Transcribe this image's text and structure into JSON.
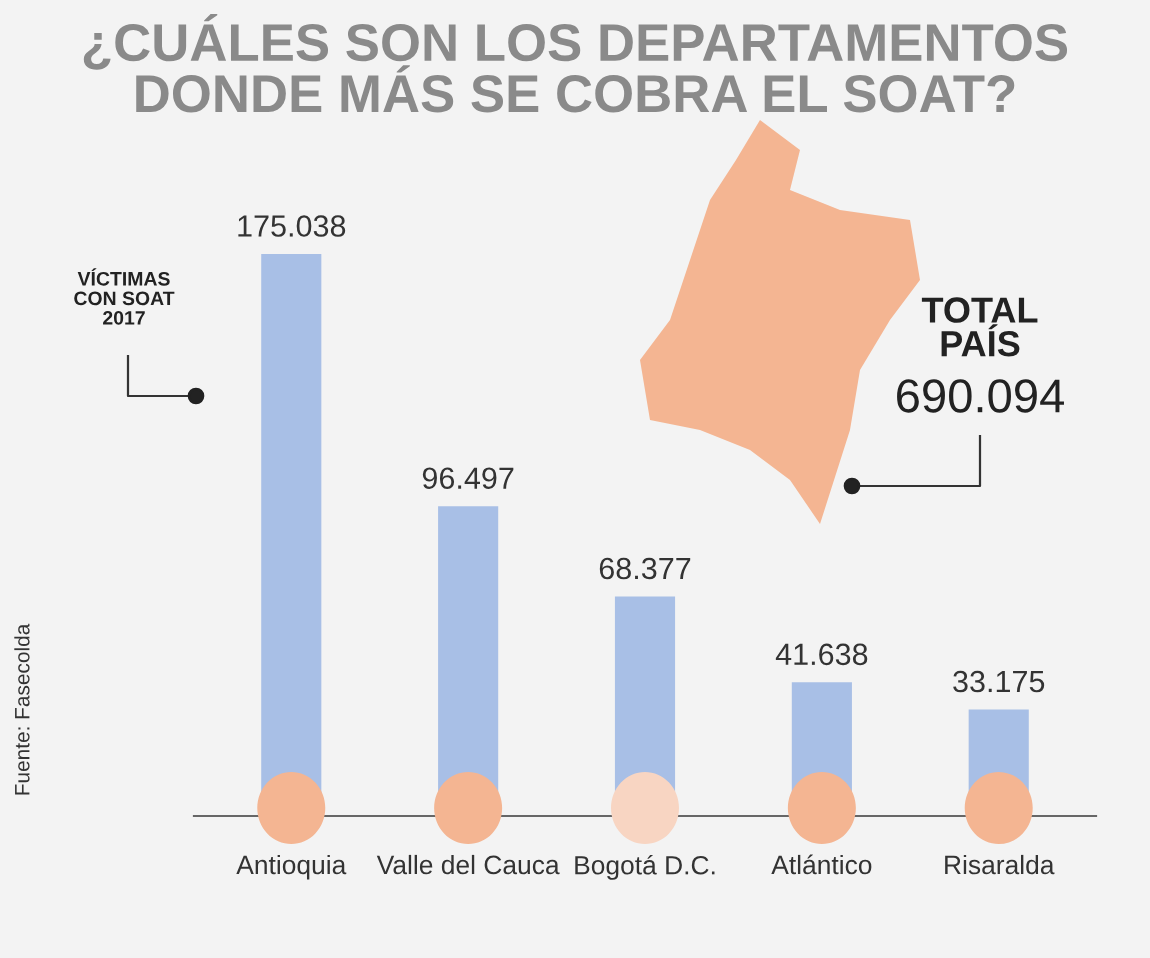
{
  "chart_data": {
    "type": "bar",
    "title": "¿CUÁLES SON LOS DEPARTAMENTOS\nDONDE MÁS SE COBRA EL SOAT?",
    "categories": [
      "Antioquia",
      "Valle del Cauca",
      "Bogotá D.C.",
      "Atlántico",
      "Risaralda"
    ],
    "values": [
      175038,
      96497,
      68377,
      41638,
      33175
    ],
    "value_labels": [
      "175.038",
      "96.497",
      "68.377",
      "41.638",
      "33.175"
    ],
    "color": "#a8bfe6",
    "annotations": [
      "VÍCTIMAS\nCON SOAT\n2017",
      "TOTAL\nPAÍS",
      "690.094",
      "Fuente: Fasecolda"
    ]
  }
}
